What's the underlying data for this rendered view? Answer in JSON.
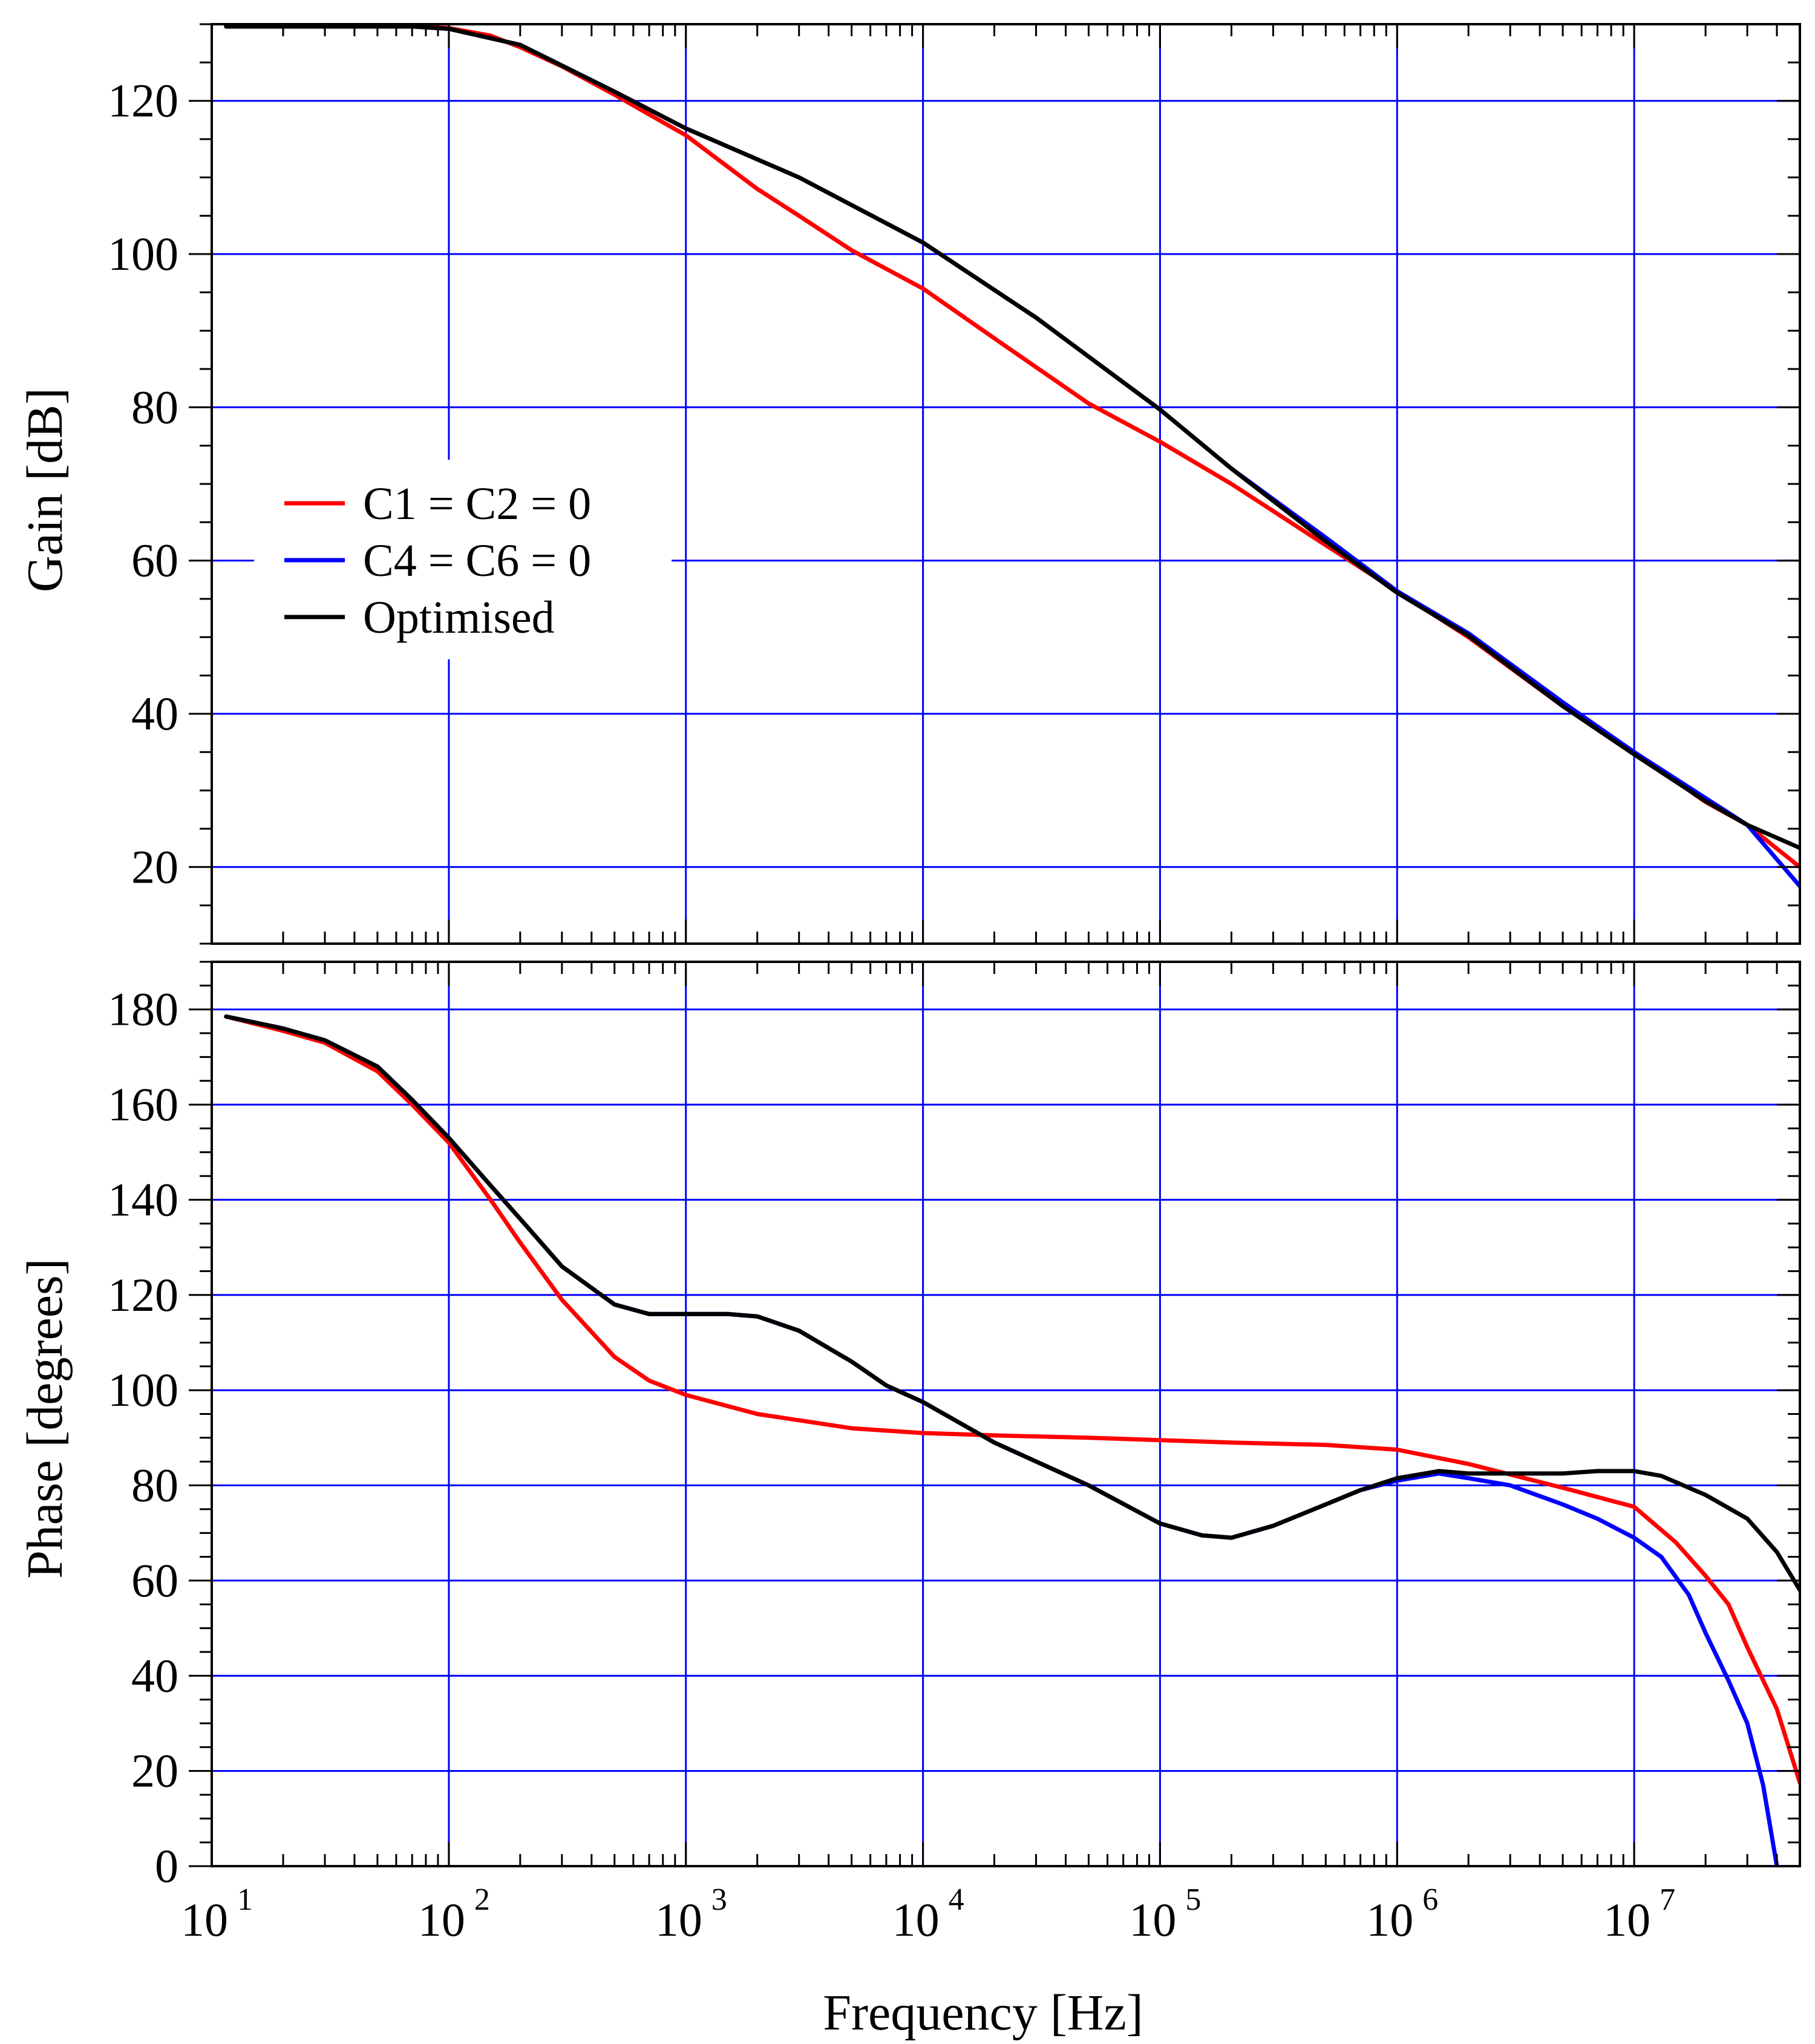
{
  "chart_data": [
    {
      "type": "line",
      "panel": "gain",
      "xlabel": "",
      "ylabel": "Gain [dB]",
      "x_scale": "log",
      "xlim": [
        10,
        50000000
      ],
      "ylim": [
        10,
        130
      ],
      "yticks": [
        20,
        40,
        60,
        80,
        100,
        120
      ],
      "ytick_labels": [
        "20",
        "40",
        "60",
        "80",
        "100",
        "120"
      ],
      "grid": true,
      "legend_position": "left-middle",
      "series": [
        {
          "name": "C1 = C2 = 0",
          "color": "#ff0000",
          "x": [
            11.5,
            70,
            100,
            150,
            200,
            300,
            500,
            1000,
            2000,
            3000,
            5000,
            10000,
            20000,
            50000,
            100000,
            200000,
            500000,
            1000000,
            2000000,
            5000000,
            10000000,
            20000000,
            30000000,
            50000000
          ],
          "y": [
            129.7,
            129.7,
            129.5,
            128.5,
            127,
            124.5,
            120.8,
            115.5,
            108.5,
            105,
            100.5,
            95.5,
            89,
            80.5,
            75.5,
            70,
            62,
            56,
            50,
            41,
            35,
            28.5,
            25.5,
            20
          ]
        },
        {
          "name": "C4 = C6 = 0",
          "color": "#0000ff",
          "x": [
            11.5,
            70,
            100,
            200,
            500,
            1000,
            3000,
            10000,
            30000,
            100000,
            200000,
            500000,
            1000000,
            2000000,
            5000000,
            10000000,
            20000000,
            30000000,
            50000000
          ],
          "y": [
            129.7,
            129.7,
            129.4,
            127.3,
            121.2,
            116.4,
            110,
            101.5,
            91.7,
            79.7,
            72,
            63,
            56,
            50.5,
            41.5,
            35,
            29,
            25.5,
            17.5
          ]
        },
        {
          "name": "Optimised",
          "color": "#000000",
          "x": [
            11.5,
            70,
            100,
            200,
            500,
            1000,
            3000,
            10000,
            30000,
            100000,
            200000,
            500000,
            1000000,
            2000000,
            5000000,
            10000000,
            20000000,
            30000000,
            50000000
          ],
          "y": [
            129.7,
            129.7,
            129.4,
            127.3,
            121.2,
            116.4,
            110,
            101.5,
            91.7,
            79.7,
            72,
            62.5,
            55.8,
            50.2,
            41,
            34.7,
            28.6,
            25.5,
            22.5
          ]
        }
      ]
    },
    {
      "type": "line",
      "panel": "phase",
      "xlabel": "Frequency [Hz]",
      "ylabel": "Phase [degrees]",
      "x_scale": "log",
      "xlim": [
        10,
        50000000
      ],
      "ylim": [
        0,
        190
      ],
      "yticks": [
        0,
        20,
        40,
        60,
        80,
        100,
        120,
        140,
        160,
        180
      ],
      "ytick_labels": [
        "0",
        "20",
        "40",
        "60",
        "80",
        "100",
        "120",
        "140",
        "160",
        "180"
      ],
      "xtick_base": "10",
      "xtick_exponents": [
        "1",
        "2",
        "3",
        "4",
        "5",
        "6",
        "7"
      ],
      "grid": true,
      "series": [
        {
          "name": "C1 = C2 = 0",
          "color": "#ff0000",
          "x": [
            11.5,
            20,
            30,
            50,
            70,
            100,
            150,
            200,
            300,
            500,
            700,
            1000,
            2000,
            5000,
            10000,
            20000,
            50000,
            100000,
            200000,
            500000,
            1000000,
            2000000,
            5000000,
            10000000,
            15000000,
            20000000,
            25000000,
            30000000,
            40000000,
            50000000
          ],
          "y": [
            178.5,
            175.5,
            173,
            167,
            160,
            152,
            140,
            131,
            119,
            107,
            102,
            99,
            95,
            92,
            91,
            90.5,
            90,
            89.5,
            89,
            88.5,
            87.5,
            84.5,
            79.5,
            75.5,
            68,
            61,
            55,
            46,
            33,
            17.5
          ]
        },
        {
          "name": "C4 = C6 = 0",
          "color": "#0000ff",
          "x": [
            11.5,
            20,
            30,
            50,
            70,
            100,
            150,
            200,
            300,
            500,
            700,
            1000,
            1500,
            2000,
            3000,
            5000,
            7000,
            10000,
            20000,
            50000,
            100000,
            150000,
            200000,
            300000,
            500000,
            700000,
            1000000,
            1500000,
            2000000,
            3000000,
            5000000,
            7000000,
            10000000,
            13000000,
            17000000,
            20000000,
            25000000,
            30000000,
            35000000,
            40000000
          ],
          "y": [
            178.5,
            176,
            173.5,
            168,
            161,
            153,
            143,
            136,
            126,
            118,
            116,
            116,
            116,
            115.5,
            112.5,
            106,
            101,
            97.5,
            89,
            80,
            72,
            69.5,
            69,
            71.5,
            76,
            79,
            81,
            82.5,
            81.5,
            80,
            76,
            73,
            69,
            65,
            57,
            49,
            39,
            30,
            17,
            0
          ]
        },
        {
          "name": "Optimised",
          "color": "#000000",
          "x": [
            11.5,
            20,
            30,
            50,
            70,
            100,
            150,
            200,
            300,
            500,
            700,
            1000,
            1500,
            2000,
            3000,
            5000,
            7000,
            10000,
            20000,
            50000,
            100000,
            150000,
            200000,
            300000,
            500000,
            700000,
            1000000,
            1500000,
            2000000,
            3000000,
            5000000,
            7000000,
            10000000,
            13000000,
            20000000,
            30000000,
            40000000,
            50000000
          ],
          "y": [
            178.5,
            176,
            173.5,
            168,
            161,
            153,
            143,
            136,
            126,
            118,
            116,
            116,
            116,
            115.5,
            112.5,
            106,
            101,
            97.5,
            89,
            80,
            72,
            69.5,
            69,
            71.5,
            76,
            79,
            81.5,
            83,
            82.5,
            82.5,
            82.5,
            83,
            83,
            82,
            78,
            73,
            66,
            58
          ]
        }
      ]
    }
  ]
}
